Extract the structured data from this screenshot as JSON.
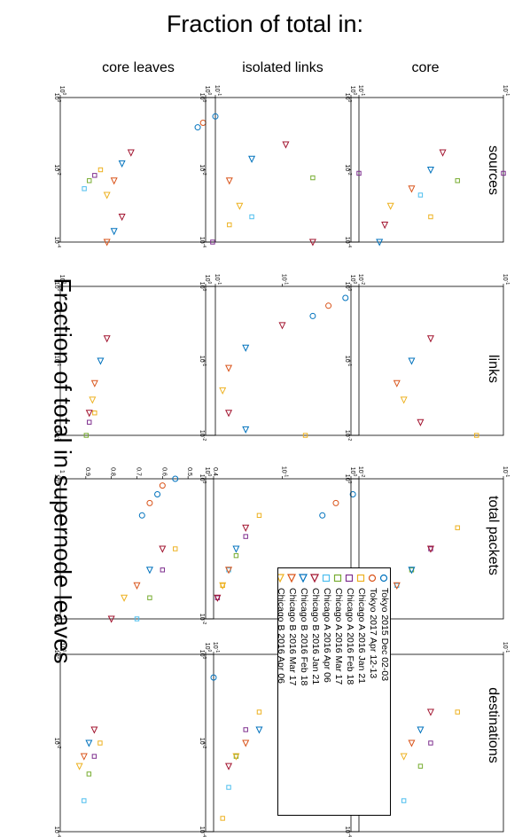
{
  "figure": {
    "main_title": "Fraction of total in:",
    "side_title": "Fraction of total in supernode leaves"
  },
  "columns": [
    "core leaves",
    "isolated links",
    "core"
  ],
  "rows": [
    "sources",
    "links",
    "total packets",
    "destinations"
  ],
  "legend": [
    {
      "label": "Tokyo 2015 Dec 02-03",
      "marker": "circle",
      "color": "#0072BD"
    },
    {
      "label": "Tokyo 2017 Apr 12-13",
      "marker": "circle",
      "color": "#D95319"
    },
    {
      "label": "Chicago A 2016 Jan 21",
      "marker": "square",
      "color": "#EDB120"
    },
    {
      "label": "Chicago A 2016 Feb 18",
      "marker": "square",
      "color": "#7E2F8E"
    },
    {
      "label": "Chicago A 2016 Mar 17",
      "marker": "square",
      "color": "#77AC30"
    },
    {
      "label": "Chicago A 2016 Apr 06",
      "marker": "square",
      "color": "#4DBEEE"
    },
    {
      "label": "Chicago B 2016 Jan 21",
      "marker": "triangle",
      "color": "#A2142F"
    },
    {
      "label": "Chicago B 2016 Feb 18",
      "marker": "triangle",
      "color": "#0072BD"
    },
    {
      "label": "Chicago B 2016 Mar 17",
      "marker": "triangle",
      "color": "#D95319"
    },
    {
      "label": "Chicago B 2016 Apr 06",
      "marker": "triangle",
      "color": "#EDB120"
    }
  ],
  "chart_data": {
    "type": "scatter",
    "x_axis_scale": "log",
    "y_axis_scale": "log",
    "panels": [
      {
        "column": "core leaves",
        "row": "sources",
        "xticks": [
          "10^0",
          "10^-2",
          "10^-4"
        ],
        "yticks": [
          "10^-1",
          "10^0"
        ],
        "series": [
          {
            "name": "Tokyo",
            "marker": "circle",
            "x": [
              1,
              0.8,
              0.6,
              0.45,
              0.3,
              0.2,
              0.15
            ],
            "y": [
              0.03,
              0.05,
              0.07,
              0.09,
              0.1,
              0.12,
              0.13
            ]
          },
          {
            "name": "Chicago A",
            "marker": "square",
            "x": [
              0.01,
              0.007,
              0.005,
              0.003
            ],
            "y": [
              0.55,
              0.6,
              0.65,
              0.7
            ]
          },
          {
            "name": "Chicago B",
            "marker": "triangle",
            "x": [
              0.03,
              0.015,
              0.005,
              0.002,
              0.0005,
              0.0002,
              0.0001,
              5e-05
            ],
            "y": [
              0.35,
              0.4,
              0.45,
              0.5,
              0.4,
              0.45,
              0.5,
              0.55
            ]
          }
        ]
      },
      {
        "column": "isolated links",
        "row": "sources",
        "xticks": [
          "10^0",
          "10^-2",
          "10^-4"
        ],
        "yticks": [
          "10^-1",
          "10^0"
        ],
        "series": [
          {
            "name": "Tokyo",
            "marker": "circle",
            "x": [
              1,
              0.7,
              0.5,
              0.35,
              0.2
            ],
            "y": [
              0.01,
              0.012,
              0.015,
              0.02,
              0.025
            ]
          },
          {
            "name": "Chicago A",
            "marker": "square",
            "x": [
              0.01,
              0.008,
              0.006,
              0.0005,
              0.0003,
              0.0001
            ],
            "y": [
              0.05,
              0.1,
              0.2,
              0.5,
              0.7,
              0.9
            ]
          },
          {
            "name": "Chicago B",
            "marker": "triangle",
            "x": [
              0.05,
              0.02,
              0.005,
              0.001,
              0.0001,
              3e-05
            ],
            "y": [
              0.3,
              0.5,
              0.7,
              0.6,
              0.2,
              0.05
            ]
          }
        ]
      },
      {
        "column": "core",
        "row": "sources",
        "xticks": [
          "10^0",
          "10^-2",
          "10^-4"
        ],
        "yticks": [
          "10^-1",
          "10^0"
        ],
        "series": [
          {
            "name": "Tokyo",
            "marker": "circle",
            "x": [
              1,
              0.9,
              0.8,
              0.6,
              0.45,
              0.3
            ],
            "y": [
              0.005,
              0.006,
              0.007,
              0.008,
              0.01,
              0.012
            ]
          },
          {
            "name": "Chicago A",
            "marker": "square",
            "x": [
              0.01,
              0.008,
              0.005,
              0.002,
              0.0005
            ],
            "y": [
              0.05,
              0.1,
              0.2,
              0.35,
              0.3
            ]
          },
          {
            "name": "Chicago B",
            "marker": "triangle",
            "x": [
              0.03,
              0.01,
              0.003,
              0.001,
              0.0003,
              0.0001,
              5e-05
            ],
            "y": [
              0.25,
              0.3,
              0.4,
              0.55,
              0.6,
              0.65,
              0.7
            ]
          }
        ]
      },
      {
        "column": "core leaves",
        "row": "links",
        "xticks": [
          "10^0",
          "10^-1",
          "10^-2"
        ],
        "yticks": [
          "10^-1",
          "10^0"
        ],
        "series": [
          {
            "name": "Tokyo",
            "marker": "circle",
            "x": [
              1,
              0.9,
              0.8,
              0.7,
              0.6
            ],
            "y": [
              0.02,
              0.03,
              0.05,
              0.07,
              0.09
            ]
          },
          {
            "name": "Chicago A",
            "marker": "square",
            "x": [
              0.02,
              0.015,
              0.01,
              0.007,
              0.005
            ],
            "y": [
              0.6,
              0.65,
              0.68,
              0.7,
              0.72
            ]
          },
          {
            "name": "Chicago B",
            "marker": "triangle",
            "x": [
              0.2,
              0.1,
              0.05,
              0.03,
              0.02
            ],
            "y": [
              0.5,
              0.55,
              0.6,
              0.62,
              0.65
            ]
          }
        ]
      },
      {
        "column": "isolated links",
        "row": "links",
        "xticks": [
          "10^0",
          "10^-1",
          "10^-2"
        ],
        "yticks": [
          "10^-2",
          "10^-1",
          "10^0"
        ],
        "series": [
          {
            "name": "Tokyo",
            "marker": "circle",
            "x": [
              1,
              0.85,
              0.7,
              0.55,
              0.4
            ],
            "y": [
              0.005,
              0.008,
              0.015,
              0.025,
              0.04
            ]
          },
          {
            "name": "Chicago A",
            "marker": "square",
            "x": [
              0.01,
              0.008,
              0.006,
              0.004,
              0.003
            ],
            "y": [
              0.05,
              0.1,
              0.2,
              0.3,
              0.5
            ]
          },
          {
            "name": "Chicago B",
            "marker": "triangle",
            "x": [
              0.3,
              0.15,
              0.08,
              0.04,
              0.02,
              0.012
            ],
            "y": [
              0.1,
              0.3,
              0.5,
              0.6,
              0.5,
              0.3
            ]
          }
        ]
      },
      {
        "column": "core",
        "row": "links",
        "xticks": [
          "10^0",
          "10^-1",
          "10^-2"
        ],
        "yticks": [
          "10^-1",
          "10^0"
        ],
        "series": [
          {
            "name": "Tokyo",
            "marker": "circle",
            "x": [
              1,
              0.85,
              0.7,
              0.55,
              0.45
            ],
            "y": [
              0.02,
              0.03,
              0.04,
              0.06,
              0.08
            ]
          },
          {
            "name": "Chicago A",
            "marker": "square",
            "x": [
              0.01,
              0.008,
              0.006,
              0.005,
              0.004
            ],
            "y": [
              0.15,
              0.2,
              0.25,
              0.3,
              0.35
            ]
          },
          {
            "name": "Chicago B",
            "marker": "triangle",
            "x": [
              0.2,
              0.1,
              0.05,
              0.03,
              0.015
            ],
            "y": [
              0.3,
              0.4,
              0.5,
              0.45,
              0.35
            ]
          }
        ]
      },
      {
        "column": "core leaves",
        "row": "total packets",
        "xticks": [
          "10^0",
          "10^-2"
        ],
        "yticks": [
          "0.4",
          "0.5",
          "0.6",
          "0.7",
          "0.8",
          "0.9",
          "1"
        ],
        "series": [
          {
            "name": "Tokyo",
            "marker": "circle",
            "x": [
              1,
              0.8,
              0.6,
              0.45,
              0.3
            ],
            "y": [
              0.55,
              0.6,
              0.62,
              0.65,
              0.68
            ]
          },
          {
            "name": "Chicago A",
            "marker": "square",
            "x": [
              0.1,
              0.05,
              0.02,
              0.01,
              0.005
            ],
            "y": [
              0.55,
              0.6,
              0.65,
              0.7,
              0.75
            ]
          },
          {
            "name": "Chicago B",
            "marker": "triangle",
            "x": [
              0.1,
              0.05,
              0.03,
              0.02,
              0.01
            ],
            "y": [
              0.6,
              0.65,
              0.7,
              0.75,
              0.8
            ]
          }
        ]
      },
      {
        "column": "isolated links",
        "row": "total packets",
        "xticks": [
          "10^0",
          "10^-2"
        ],
        "yticks": [
          "10^-2",
          "10^-1",
          "10^0"
        ],
        "series": [
          {
            "name": "Tokyo",
            "marker": "circle",
            "x": [
              1,
              0.8,
              0.6,
              0.45,
              0.3
            ],
            "y": [
              0.005,
              0.008,
              0.012,
              0.02,
              0.03
            ]
          },
          {
            "name": "Chicago A",
            "marker": "square",
            "x": [
              0.3,
              0.15,
              0.08,
              0.05,
              0.03,
              0.02
            ],
            "y": [
              0.2,
              0.3,
              0.4,
              0.5,
              0.6,
              0.7
            ]
          },
          {
            "name": "Chicago B",
            "marker": "triangle",
            "x": [
              0.2,
              0.1,
              0.05,
              0.03,
              0.02
            ],
            "y": [
              0.3,
              0.4,
              0.5,
              0.6,
              0.7
            ]
          }
        ]
      },
      {
        "column": "core",
        "row": "total packets",
        "xticks": [
          "10^0",
          "10^-2"
        ],
        "yticks": [
          "10^-1",
          "10^0"
        ],
        "series": [
          {
            "name": "Tokyo",
            "marker": "circle",
            "x": [
              1,
              0.8,
              0.6,
              0.45,
              0.3
            ],
            "y": [
              0.01,
              0.015,
              0.02,
              0.025,
              0.03
            ]
          },
          {
            "name": "Chicago A",
            "marker": "square",
            "x": [
              0.2,
              0.1,
              0.05,
              0.03,
              0.02
            ],
            "y": [
              0.2,
              0.3,
              0.4,
              0.5,
              0.6
            ]
          },
          {
            "name": "Chicago B",
            "marker": "triangle",
            "x": [
              0.1,
              0.05,
              0.03,
              0.02,
              0.01
            ],
            "y": [
              0.3,
              0.4,
              0.5,
              0.6,
              0.7
            ]
          }
        ]
      },
      {
        "column": "core leaves",
        "row": "destinations",
        "xticks": [
          "10^0",
          "10^-2",
          "10^-4"
        ],
        "yticks": [
          "10^-1",
          "10^0"
        ],
        "series": [
          {
            "name": "Tokyo",
            "marker": "circle",
            "x": [
              1,
              0.8,
              0.6,
              0.45,
              0.3
            ],
            "y": [
              0.03,
              0.05,
              0.07,
              0.09,
              0.1
            ]
          },
          {
            "name": "Chicago A",
            "marker": "square",
            "x": [
              0.01,
              0.005,
              0.002,
              0.0005,
              1e-05
            ],
            "y": [
              0.55,
              0.6,
              0.65,
              0.7,
              0.9
            ]
          },
          {
            "name": "Chicago B",
            "marker": "triangle",
            "x": [
              0.02,
              0.01,
              0.005,
              0.003
            ],
            "y": [
              0.6,
              0.65,
              0.7,
              0.75
            ]
          }
        ]
      },
      {
        "column": "isolated links",
        "row": "destinations",
        "xticks": [
          "10^0",
          "10^-2",
          "10^-4"
        ],
        "yticks": [
          "10^-2",
          "10^-1",
          "10^0"
        ],
        "series": [
          {
            "name": "Tokyo",
            "marker": "circle",
            "x": [
              1,
              0.8,
              0.6,
              0.4,
              0.25
            ],
            "y": [
              0.005,
              0.01,
              0.015,
              0.02,
              0.03
            ]
          },
          {
            "name": "Chicago A",
            "marker": "square",
            "x": [
              0.05,
              0.02,
              0.005,
              0.001,
              0.0002
            ],
            "y": [
              0.2,
              0.3,
              0.4,
              0.5,
              0.6
            ]
          },
          {
            "name": "Chicago B",
            "marker": "triangle",
            "x": [
              0.05,
              0.02,
              0.01,
              0.005,
              0.003
            ],
            "y": [
              0.1,
              0.2,
              0.3,
              0.4,
              0.5
            ]
          }
        ]
      },
      {
        "column": "core",
        "row": "destinations",
        "xticks": [
          "10^0",
          "10^-2",
          "10^-4"
        ],
        "yticks": [
          "10^-1",
          "10^0"
        ],
        "series": [
          {
            "name": "Tokyo",
            "marker": "circle",
            "x": [
              1,
              0.8,
              0.6,
              0.4,
              0.25
            ],
            "y": [
              0.02,
              0.03,
              0.05,
              0.07,
              0.09
            ]
          },
          {
            "name": "Chicago A",
            "marker": "square",
            "x": [
              0.05,
              0.01,
              0.003,
              0.0005,
              1e-05
            ],
            "y": [
              0.2,
              0.3,
              0.35,
              0.45,
              0.9
            ]
          },
          {
            "name": "Chicago B",
            "marker": "triangle",
            "x": [
              0.05,
              0.02,
              0.01,
              0.005
            ],
            "y": [
              0.3,
              0.35,
              0.4,
              0.45
            ]
          }
        ]
      }
    ]
  }
}
